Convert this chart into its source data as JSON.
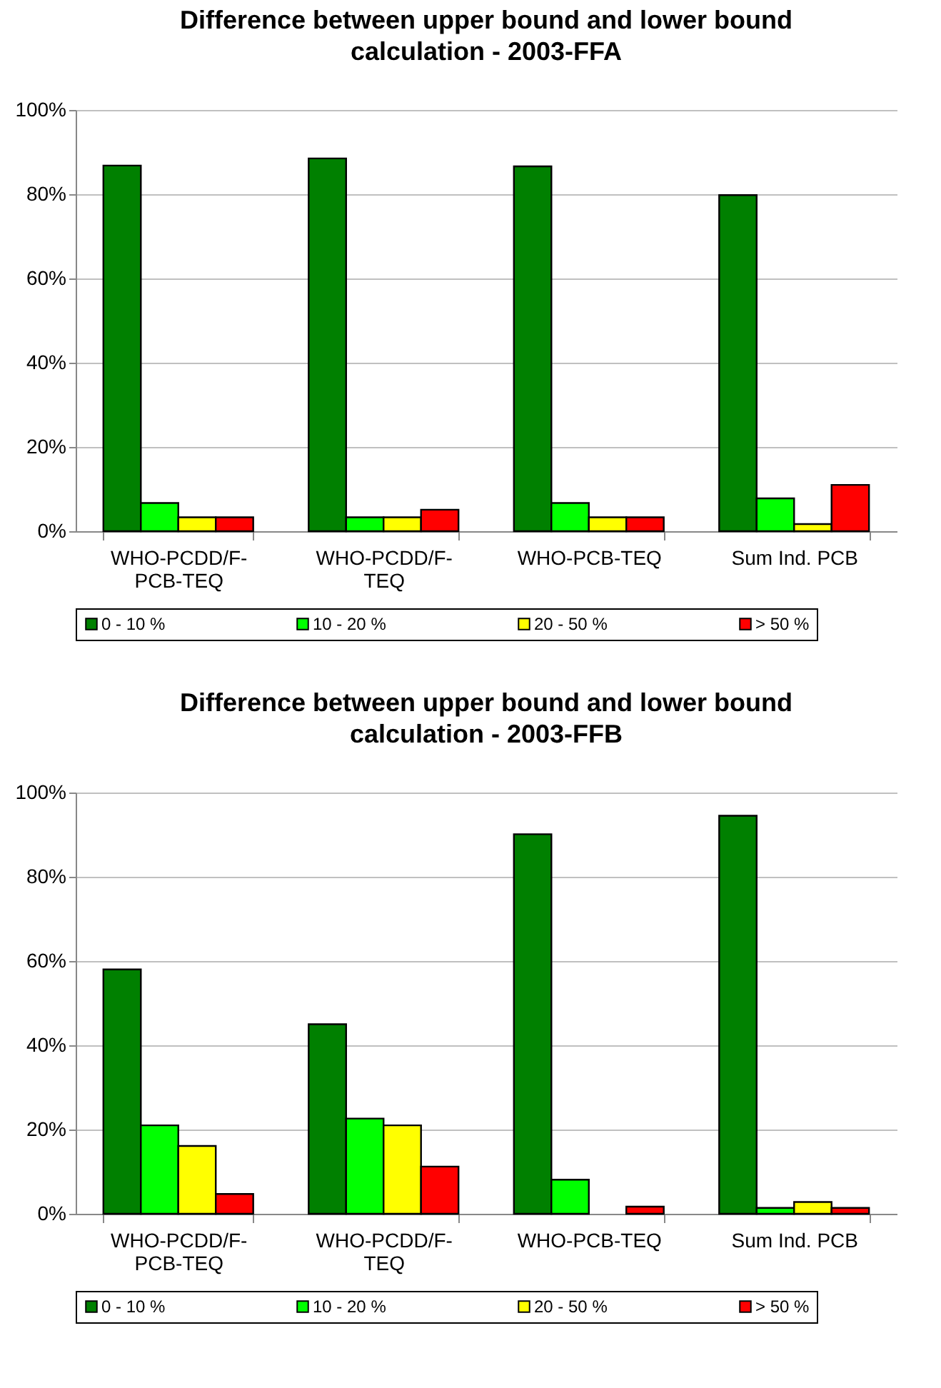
{
  "chart_data": [
    {
      "type": "bar",
      "title": "Difference between upper bound and lower bound calculation - 2003-FFA",
      "categories": [
        "WHO-PCDD/F-PCB-TEQ",
        "WHO-PCDD/F-TEQ",
        "WHO-PCB-TEQ",
        "Sum Ind. PCB"
      ],
      "series": [
        {
          "name": "0 - 10 %",
          "color": "#008000",
          "values": [
            86.8,
            88.5,
            86.6,
            79.8
          ]
        },
        {
          "name": "10 - 20 %",
          "color": "#00ff00",
          "values": [
            6.7,
            3.3,
            6.7,
            7.8
          ]
        },
        {
          "name": "20 - 50 %",
          "color": "#ffff00",
          "values": [
            3.3,
            3.3,
            3.3,
            1.7
          ]
        },
        {
          "name": "> 50 %",
          "color": "#ff0000",
          "values": [
            3.3,
            5.1,
            3.3,
            11.0
          ]
        }
      ],
      "ylim": [
        0,
        100
      ],
      "yticks": [
        {
          "value": 0,
          "label": "0%"
        },
        {
          "value": 20,
          "label": "20%"
        },
        {
          "value": 40,
          "label": "40%"
        },
        {
          "value": 60,
          "label": "60%"
        },
        {
          "value": 80,
          "label": "80%"
        },
        {
          "value": 100,
          "label": "100%"
        }
      ],
      "grid": "y",
      "legend": "bottom"
    },
    {
      "type": "bar",
      "title": "Difference between upper bound and lower bound calculation - 2003-FFB",
      "categories": [
        "WHO-PCDD/F-PCB-TEQ",
        "WHO-PCDD/F-TEQ",
        "WHO-PCB-TEQ",
        "Sum Ind. PCB"
      ],
      "series": [
        {
          "name": "0 - 10 %",
          "color": "#008000",
          "values": [
            58.0,
            45.0,
            90.1,
            94.5
          ]
        },
        {
          "name": "10 - 20 %",
          "color": "#00ff00",
          "values": [
            21.0,
            22.6,
            8.1,
            1.4
          ]
        },
        {
          "name": "20 - 50 %",
          "color": "#ffff00",
          "values": [
            16.1,
            21.0,
            null,
            2.8
          ]
        },
        {
          "name": "> 50 %",
          "color": "#ff0000",
          "values": [
            4.7,
            11.2,
            1.7,
            1.4
          ]
        }
      ],
      "ylim": [
        0,
        100
      ],
      "yticks": [
        {
          "value": 0,
          "label": "0%"
        },
        {
          "value": 20,
          "label": "20%"
        },
        {
          "value": 40,
          "label": "40%"
        },
        {
          "value": 60,
          "label": "60%"
        },
        {
          "value": 80,
          "label": "80%"
        },
        {
          "value": 100,
          "label": "100%"
        }
      ],
      "grid": "y",
      "legend": "bottom"
    }
  ]
}
